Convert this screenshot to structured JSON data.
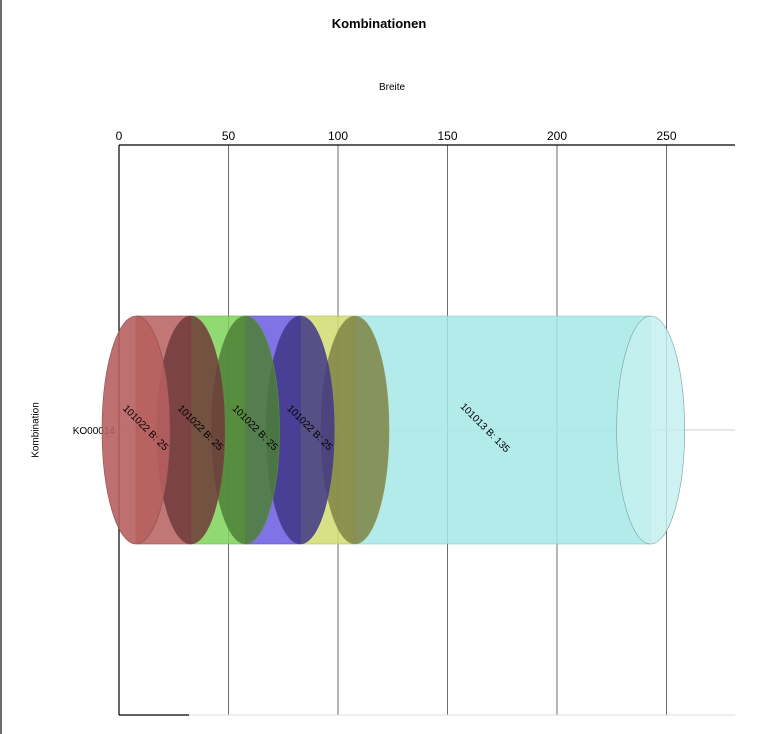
{
  "chart_data": {
    "type": "bar",
    "orientation": "horizontal-stacked-cylinder",
    "title": "Kombinationen",
    "xlabel": "Breite",
    "ylabel": "Kombination",
    "x_axis_position": "top",
    "xlim": [
      0,
      280
    ],
    "xticks": [
      0,
      50,
      100,
      150,
      200,
      250
    ],
    "categories": [
      "KO00014"
    ],
    "series": [
      {
        "label": "101022 B: 25",
        "values": [
          25
        ],
        "color": "#b75f5f"
      },
      {
        "label": "101022 B: 25",
        "values": [
          25
        ],
        "color": "#7ed35a"
      },
      {
        "label": "101022 B: 25",
        "values": [
          25
        ],
        "color": "#6a5ae0"
      },
      {
        "label": "101022 B: 25",
        "values": [
          25
        ],
        "color": "#d2dc72"
      },
      {
        "label": "101013 B: 135",
        "values": [
          135
        ],
        "color": "#a6e8e8"
      }
    ],
    "grid": "vertical"
  }
}
